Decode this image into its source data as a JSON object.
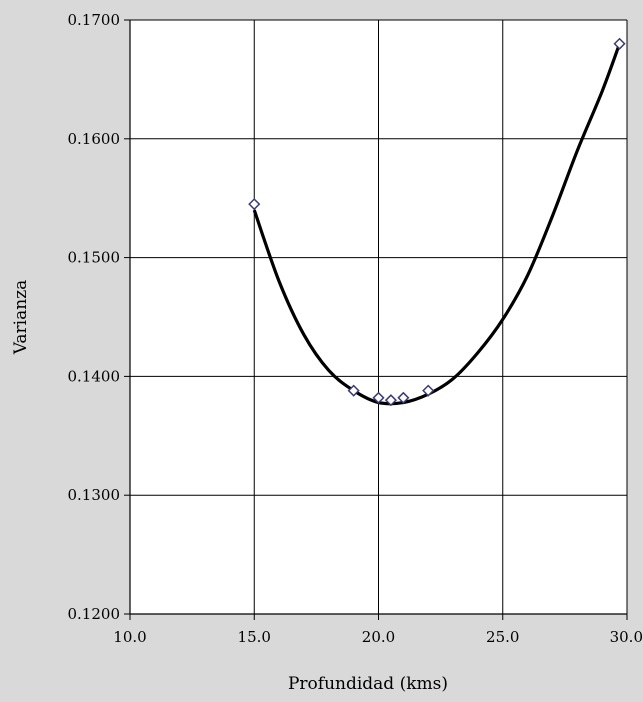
{
  "chart_data": {
    "type": "scatter",
    "xlabel": "Profundidad (kms)",
    "ylabel": "Varianza",
    "xlim": [
      10.0,
      30.0
    ],
    "ylim": [
      0.12,
      0.17
    ],
    "x_ticks": [
      10.0,
      15.0,
      20.0,
      25.0,
      30.0
    ],
    "x_tick_labels": [
      "10.0",
      "15.0",
      "20.0",
      "25.0",
      "30.0"
    ],
    "y_ticks": [
      0.12,
      0.13,
      0.14,
      0.15,
      0.16,
      0.17
    ],
    "y_tick_labels": [
      "0.1200",
      "0.1300",
      "0.1400",
      "0.1500",
      "0.1600",
      "0.1700"
    ],
    "grid": true,
    "series": [
      {
        "type": "scatter",
        "marker": "diamond",
        "x": [
          15.0,
          19.0,
          20.0,
          20.5,
          21.0,
          22.0,
          29.7
        ],
        "y": [
          0.1545,
          0.1388,
          0.1382,
          0.138,
          0.1382,
          0.1388,
          0.168
        ]
      },
      {
        "type": "line",
        "x": [
          15.0,
          16.0,
          17.0,
          18.0,
          19.0,
          20.0,
          21.0,
          22.0,
          23.0,
          24.0,
          25.0,
          26.0,
          27.0,
          28.0,
          29.0,
          29.7
        ],
        "y": [
          0.154,
          0.148,
          0.1435,
          0.1405,
          0.1388,
          0.1378,
          0.1378,
          0.1385,
          0.1398,
          0.142,
          0.1448,
          0.1485,
          0.1535,
          0.159,
          0.164,
          0.168
        ]
      }
    ],
    "colors": {
      "background": "#d9d9d9",
      "plot_area": "#ffffff",
      "grid": "#000000",
      "marker": "#3a3a78",
      "line": "#000000"
    }
  }
}
